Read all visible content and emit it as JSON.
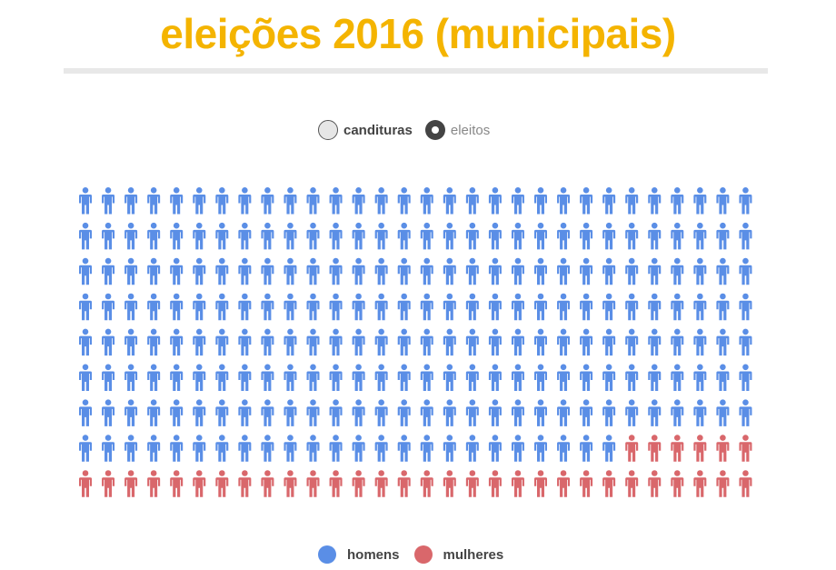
{
  "title": "eleições 2016 (municipais)",
  "toggles": {
    "option1": "candituras",
    "option2": "eleitos"
  },
  "colors": {
    "homens": "#5a8ee6",
    "mulheres": "#d9676b",
    "title": "#f4b400"
  },
  "chart_data": {
    "type": "pictogram",
    "columns": 30,
    "total_icons": 270,
    "series": [
      {
        "name": "homens",
        "count": 234
      },
      {
        "name": "mulheres",
        "count": 36
      }
    ],
    "legend": [
      "homens",
      "mulheres"
    ],
    "legend_placement": "bottom"
  }
}
